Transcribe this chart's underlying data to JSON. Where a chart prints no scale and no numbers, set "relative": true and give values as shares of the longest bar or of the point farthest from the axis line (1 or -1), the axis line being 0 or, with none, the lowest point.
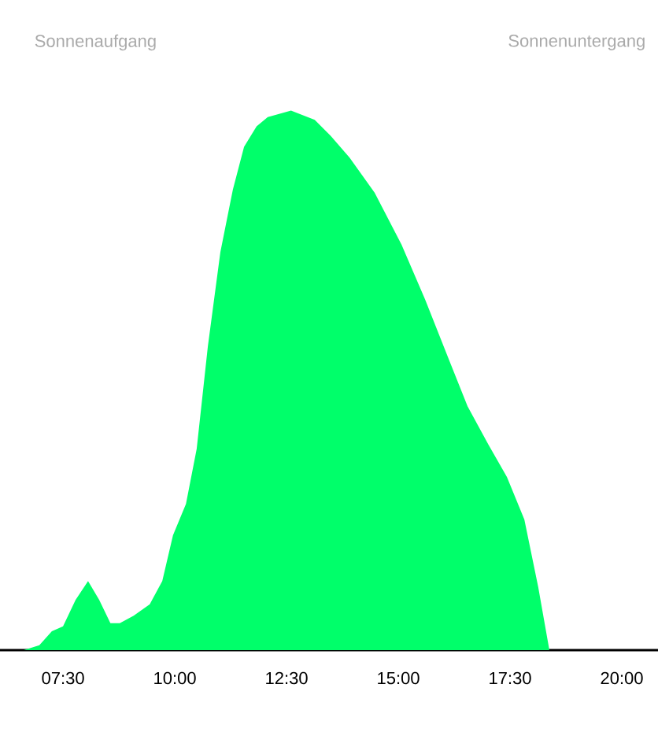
{
  "chart_data": {
    "type": "area",
    "relative": true,
    "color": "#00ff6a",
    "x": [
      6.62,
      6.97,
      7.25,
      7.5,
      7.78,
      8.06,
      8.31,
      8.56,
      8.77,
      9.08,
      9.44,
      9.72,
      9.96,
      10.25,
      10.49,
      10.74,
      11.02,
      11.3,
      11.55,
      11.83,
      12.08,
      12.6,
      13.13,
      13.49,
      13.91,
      14.47,
      15.07,
      15.6,
      16.13,
      16.55,
      17.01,
      17.43,
      17.82,
      18.13,
      18.38
    ],
    "values": [
      0,
      0.009,
      0.035,
      0.044,
      0.093,
      0.128,
      0.093,
      0.05,
      0.05,
      0.064,
      0.085,
      0.128,
      0.213,
      0.271,
      0.373,
      0.563,
      0.738,
      0.854,
      0.933,
      0.971,
      0.988,
      1,
      0.983,
      0.953,
      0.913,
      0.848,
      0.752,
      0.65,
      0.539,
      0.452,
      0.382,
      0.321,
      0.242,
      0.117,
      0
    ],
    "xlim": [
      6.09,
      20.81
    ],
    "xticks": [
      {
        "value": 7.5,
        "label": "07:30"
      },
      {
        "value": 10,
        "label": "10:00"
      },
      {
        "value": 12.5,
        "label": "12:30"
      },
      {
        "value": 15,
        "label": "15:00"
      },
      {
        "value": 17.5,
        "label": "17:30"
      },
      {
        "value": 20,
        "label": "20:00"
      }
    ],
    "annotations": [
      "Sonnenaufgang",
      "Sonnenuntergang"
    ]
  }
}
